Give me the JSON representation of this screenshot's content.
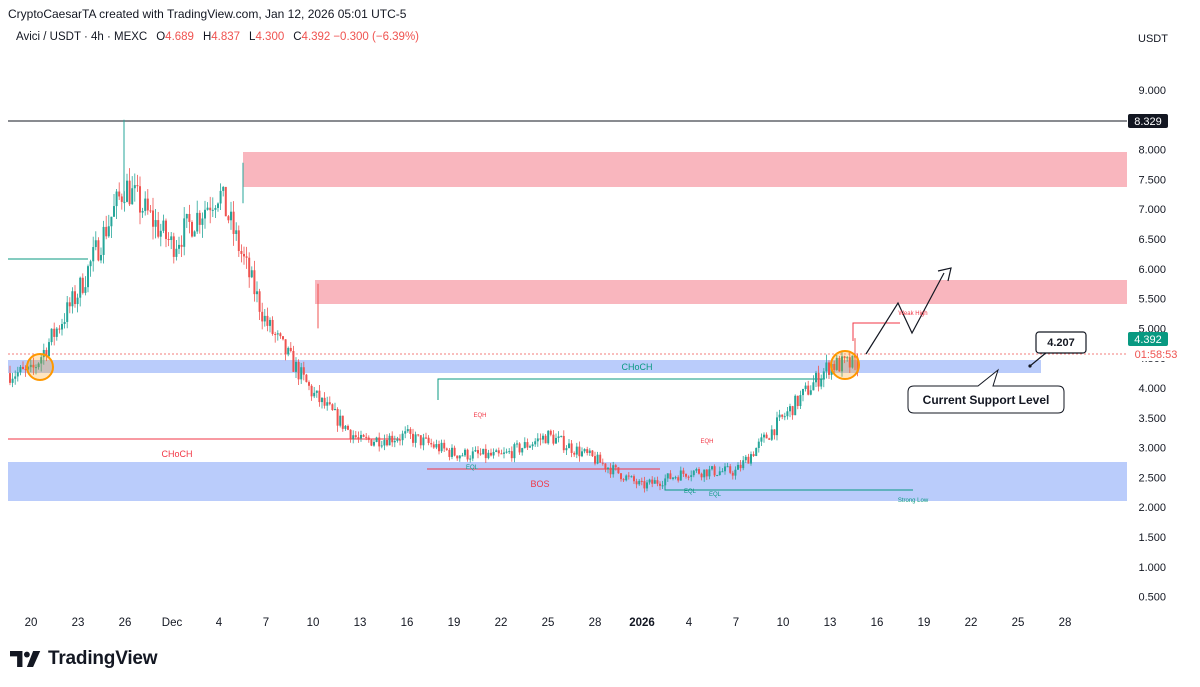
{
  "header": {
    "credit": "CryptoCaesarTA created with TradingView.com, Jan 12, 2026 05:01 UTC-5",
    "symbol": "Avici / USDT · 4h · MEXC",
    "open_label": "O",
    "open": "4.689",
    "high_label": "H",
    "high": "4.837",
    "low_label": "L",
    "low": "4.300",
    "close_label": "C",
    "close": "4.392",
    "change": "−0.300 (−6.39%)"
  },
  "price_axis": {
    "currency": "USDT",
    "ticks": [
      "0.500",
      "1.000",
      "1.500",
      "2.000",
      "2.500",
      "3.000",
      "3.500",
      "4.000",
      "4.500",
      "5.000",
      "5.500",
      "6.000",
      "6.500",
      "7.000",
      "7.500",
      "8.000",
      "8.500",
      "9.000"
    ],
    "hline_value": 8.329,
    "hline_label": "8.329",
    "last_price": 4.392,
    "last_price_label": "4.392",
    "countdown": "01:58:53"
  },
  "time_axis": {
    "labels": [
      "20",
      "23",
      "26",
      "Dec",
      "4",
      "7",
      "10",
      "13",
      "16",
      "19",
      "22",
      "25",
      "28",
      "2026",
      "4",
      "7",
      "10",
      "13",
      "16",
      "19",
      "22",
      "25",
      "28"
    ]
  },
  "annotations": {
    "support_callout": "Current Support Level",
    "price_callout": "4.207",
    "choch_top": "CHoCH",
    "choch_left": "CHoCH",
    "bos": "BOS",
    "eqh_1": "EQH",
    "eqh_2": "EQH",
    "eql_1": "EQL",
    "eql_2": "EQL",
    "eql_3": "EQL",
    "strong_low": "Strong Low",
    "weak_high": "Weak High"
  },
  "colors": {
    "up": "#26a69a",
    "down": "#ef5350",
    "supply_zone": "#f8a9b3",
    "demand_zone": "#b3c7fb",
    "structure_green": "#089981",
    "structure_red": "#f23645"
  },
  "chart_data": {
    "type": "candlestick",
    "title": "Avici / USDT · 4h · MEXC",
    "ylim": [
      0.2,
      9.45
    ],
    "zones": [
      {
        "kind": "supply",
        "from": 7.2,
        "to": 7.78
      },
      {
        "kind": "supply",
        "from": 5.22,
        "to": 5.65
      },
      {
        "kind": "support",
        "from": 4.07,
        "to": 4.3
      },
      {
        "kind": "demand",
        "from": 1.92,
        "to": 2.58
      }
    ],
    "structure_levels": [
      {
        "label": "CHoCH",
        "value": 3.98
      },
      {
        "label": "CHoCH",
        "value": 2.92
      },
      {
        "label": "BOS",
        "value": 2.45
      },
      {
        "label": "Strong Low",
        "value": 2.12
      }
    ],
    "price_path": [
      {
        "x": "20",
        "y": 4.25
      },
      {
        "x": "23",
        "y": 5.6
      },
      {
        "x": "26",
        "y": 7.4
      },
      {
        "x": "Dec",
        "y": 6.4
      },
      {
        "x": "4",
        "y": 7.3
      },
      {
        "x": "7",
        "y": 5.1
      },
      {
        "x": "10",
        "y": 3.9
      },
      {
        "x": "13",
        "y": 3.1
      },
      {
        "x": "16",
        "y": 3.2
      },
      {
        "x": "19",
        "y": 2.9
      },
      {
        "x": "22",
        "y": 2.85
      },
      {
        "x": "25",
        "y": 3.2
      },
      {
        "x": "28",
        "y": 2.8
      },
      {
        "x": "2026",
        "y": 2.35
      },
      {
        "x": "4",
        "y": 2.6
      },
      {
        "x": "7",
        "y": 2.6
      },
      {
        "x": "10",
        "y": 3.5
      },
      {
        "x": "13",
        "y": 4.39
      }
    ]
  }
}
